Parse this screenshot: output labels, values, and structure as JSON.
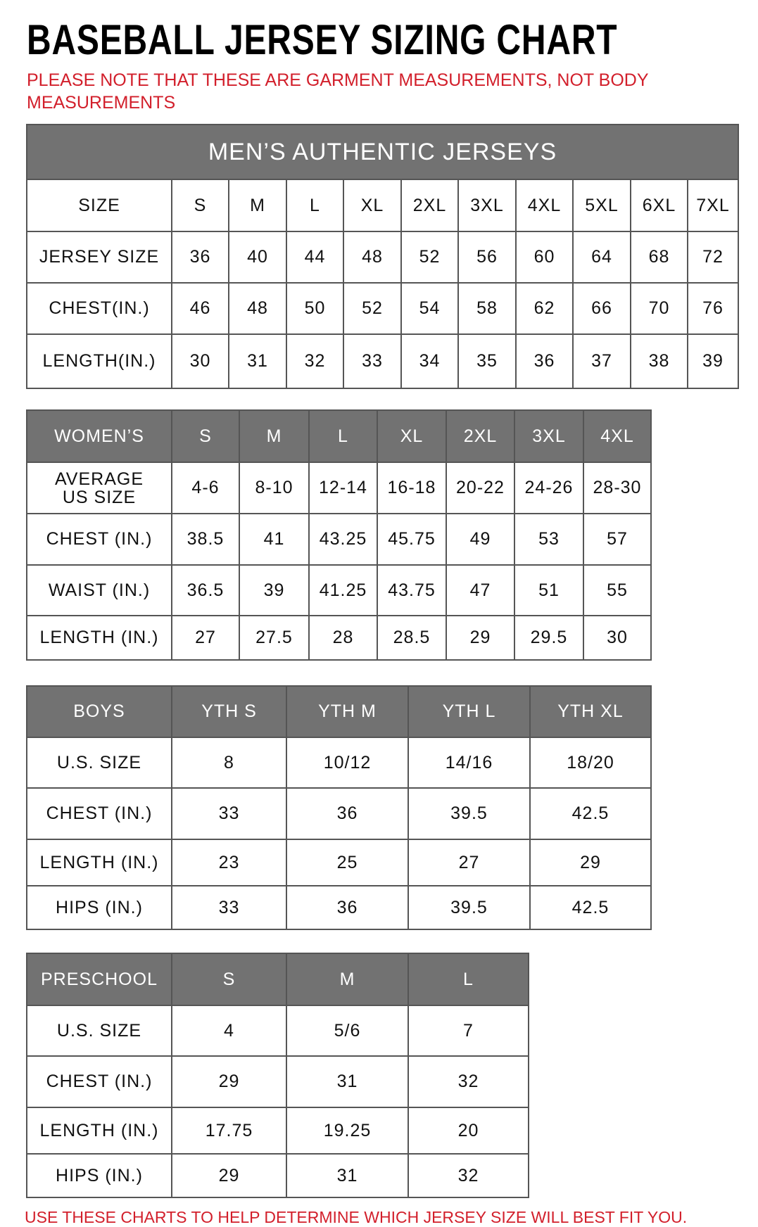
{
  "title": "BASEBALL JERSEY SIZING CHART",
  "note": "PLEASE NOTE THAT THESE ARE GARMENT MEASUREMENTS, NOT BODY MEASUREMENTS",
  "footer": "USE THESE CHARTS TO HELP DETERMINE WHICH JERSEY SIZE WILL BEST FIT YOU.",
  "colors": {
    "header_gray": "#727272",
    "note_red": "#d21f2b",
    "border": "#555555"
  },
  "tables": [
    {
      "id": "mens",
      "banner": "MEN’S AUTHENTIC JERSEYS",
      "header_style": "plain",
      "header": [
        "SIZE",
        "S",
        "M",
        "L",
        "XL",
        "2XL",
        "3XL",
        "4XL",
        "5XL",
        "6XL",
        "7XL"
      ],
      "rows": [
        [
          "JERSEY SIZE",
          "36",
          "40",
          "44",
          "48",
          "52",
          "56",
          "60",
          "64",
          "68",
          "72"
        ],
        [
          "CHEST(IN.)",
          "46",
          "48",
          "50",
          "52",
          "54",
          "58",
          "62",
          "66",
          "70",
          "76"
        ],
        [
          "LENGTH(IN.)",
          "30",
          "31",
          "32",
          "33",
          "34",
          "35",
          "36",
          "37",
          "38",
          "39"
        ]
      ]
    },
    {
      "id": "womens",
      "header_style": "gray",
      "header": [
        "WOMEN’S",
        "S",
        "M",
        "L",
        "XL",
        "2XL",
        "3XL",
        "4XL"
      ],
      "rows": [
        [
          "AVERAGE US SIZE",
          "4-6",
          "8-10",
          "12-14",
          "16-18",
          "20-22",
          "24-26",
          "28-30"
        ],
        [
          "CHEST (IN.)",
          "38.5",
          "41",
          "43.25",
          "45.75",
          "49",
          "53",
          "57"
        ],
        [
          "WAIST (IN.)",
          "36.5",
          "39",
          "41.25",
          "43.75",
          "47",
          "51",
          "55"
        ],
        [
          "LENGTH (IN.)",
          "27",
          "27.5",
          "28",
          "28.5",
          "29",
          "29.5",
          "30"
        ]
      ]
    },
    {
      "id": "boys",
      "header_style": "gray",
      "header": [
        "BOYS",
        "YTH S",
        "YTH M",
        "YTH L",
        "YTH XL"
      ],
      "rows": [
        [
          "U.S. SIZE",
          "8",
          "10/12",
          "14/16",
          "18/20"
        ],
        [
          "CHEST (IN.)",
          "33",
          "36",
          "39.5",
          "42.5"
        ],
        [
          "LENGTH (IN.)",
          "23",
          "25",
          "27",
          "29"
        ],
        [
          "HIPS (IN.)",
          "33",
          "36",
          "39.5",
          "42.5"
        ]
      ]
    },
    {
      "id": "preschool",
      "header_style": "gray",
      "header": [
        "PRESCHOOL",
        "S",
        "M",
        "L"
      ],
      "rows": [
        [
          "U.S. SIZE",
          "4",
          "5/6",
          "7"
        ],
        [
          "CHEST (IN.)",
          "29",
          "31",
          "32"
        ],
        [
          "LENGTH (IN.)",
          "17.75",
          "19.25",
          "20"
        ],
        [
          "HIPS (IN.)",
          "29",
          "31",
          "32"
        ]
      ]
    }
  ]
}
